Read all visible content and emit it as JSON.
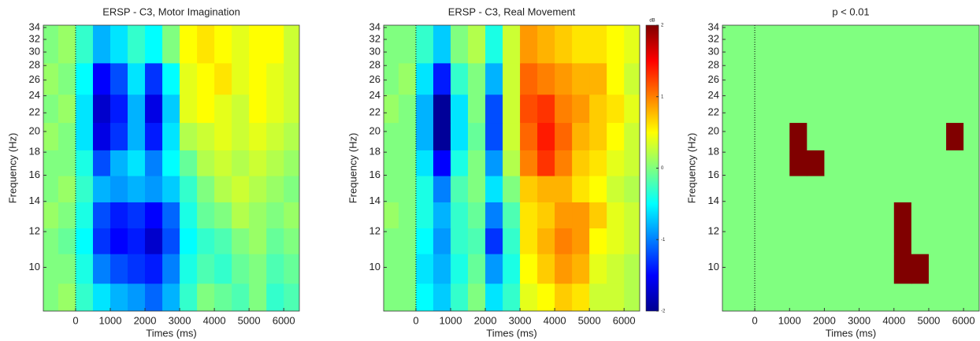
{
  "chart_data": [
    {
      "type": "heatmap",
      "title": "ERSP - C3, Motor Imagination",
      "xlabel": "Times (ms)",
      "ylabel": "Frequency (Hz)",
      "colormap": "jet",
      "clim": [
        -2,
        2
      ],
      "ylog": true,
      "events": [
        0
      ],
      "xlim": [
        -930,
        6450
      ],
      "xticks": [
        0,
        1000,
        2000,
        3000,
        4000,
        5000,
        6000
      ],
      "ylim": [
        8,
        34.4
      ],
      "yticks": [
        10,
        12,
        14,
        16,
        18,
        20,
        22,
        24,
        26,
        28,
        30,
        32,
        34
      ],
      "x": [
        -750,
        -250,
        250,
        750,
        1250,
        1750,
        2250,
        2750,
        3250,
        3750,
        4250,
        4750,
        5250,
        5750,
        6250
      ],
      "y": [
        8.5,
        10,
        11.5,
        13,
        15,
        17,
        19.5,
        22.5,
        26,
        31
      ],
      "values": [
        [
          0,
          0.1,
          -0.3,
          -0.6,
          -0.8,
          -0.9,
          -1.1,
          -0.8,
          -0.3,
          0,
          -0.1,
          -0.2,
          0,
          -0.3,
          -0.2
        ],
        [
          0,
          0,
          -0.4,
          -1.0,
          -1.2,
          -1.3,
          -1.4,
          -1.0,
          -0.4,
          -0.2,
          -0.3,
          -0.1,
          0,
          -0.2,
          -0.1
        ],
        [
          0,
          -0.1,
          -0.5,
          -1.3,
          -1.5,
          -1.4,
          -1.7,
          -1.2,
          -0.5,
          -0.3,
          -0.2,
          0,
          0.1,
          -0.1,
          0
        ],
        [
          0.1,
          0,
          -0.4,
          -1.2,
          -1.4,
          -1.3,
          -1.5,
          -1.1,
          -0.4,
          -0.1,
          0,
          0.2,
          0.1,
          0,
          0.1
        ],
        [
          0,
          0.1,
          -0.3,
          -0.8,
          -0.9,
          -0.8,
          -0.9,
          -0.7,
          -0.3,
          0,
          0.2,
          0.3,
          0.2,
          0.1,
          0
        ],
        [
          0,
          0,
          -0.4,
          -1.2,
          -0.8,
          -0.6,
          -1.0,
          -0.5,
          -0.1,
          0.2,
          0.3,
          0.2,
          0.3,
          0.2,
          0.1
        ],
        [
          0.1,
          0,
          -0.6,
          -1.6,
          -1.3,
          -0.8,
          -1.4,
          -0.6,
          0.2,
          0.3,
          0.4,
          0.3,
          0.4,
          0.3,
          0.2
        ],
        [
          0,
          0.1,
          -0.6,
          -1.7,
          -1.4,
          -0.8,
          -1.6,
          -0.7,
          0.4,
          0.5,
          0.4,
          0.3,
          0.5,
          0.4,
          0.3
        ],
        [
          0.1,
          0,
          -0.5,
          -1.5,
          -1.2,
          -0.6,
          -1.3,
          -0.5,
          0.4,
          0.5,
          0.6,
          0.4,
          0.5,
          0.4,
          0.3
        ],
        [
          0,
          0.1,
          -0.3,
          -0.8,
          -0.6,
          -0.3,
          -0.5,
          0,
          0.5,
          0.6,
          0.5,
          0.4,
          0.5,
          0.5,
          0.3
        ]
      ]
    },
    {
      "type": "heatmap",
      "title": "ERSP - C3, Real Movement",
      "xlabel": "Times (ms)",
      "ylabel": "Frequency (Hz)",
      "colormap": "jet",
      "clim": [
        -2,
        2
      ],
      "ylog": true,
      "events": [
        0
      ],
      "colorbar": {
        "label": "dB",
        "lim": [
          -2,
          2
        ],
        "ticks": [
          -2,
          -1,
          0,
          1,
          2
        ]
      },
      "xlim": [
        -930,
        6450
      ],
      "xticks": [
        0,
        1000,
        2000,
        3000,
        4000,
        5000,
        6000
      ],
      "ylim": [
        8,
        34.4
      ],
      "yticks": [
        10,
        12,
        14,
        16,
        18,
        20,
        22,
        24,
        26,
        28,
        30,
        32,
        34
      ],
      "x": [
        -750,
        -250,
        250,
        750,
        1250,
        1750,
        2250,
        2750,
        3250,
        3750,
        4250,
        4750,
        5250,
        5750,
        6250
      ],
      "y": [
        8.5,
        10,
        11.5,
        13,
        15,
        17,
        19.5,
        22.5,
        26,
        31
      ],
      "values": [
        [
          0,
          0,
          -0.5,
          -0.7,
          -0.3,
          0,
          -0.6,
          -0.3,
          0.4,
          0.5,
          0.7,
          0.6,
          0.3,
          0.3,
          0.2
        ],
        [
          0,
          0,
          -0.6,
          -0.8,
          -0.4,
          -0.1,
          -0.9,
          -0.4,
          0.5,
          0.7,
          0.9,
          0.8,
          0.4,
          0.3,
          0.2
        ],
        [
          0,
          0,
          -0.5,
          -0.9,
          -0.3,
          -0.2,
          -1.3,
          -0.3,
          0.6,
          0.8,
          1.0,
          0.9,
          0.5,
          0.4,
          0.3
        ],
        [
          0.1,
          0,
          -0.4,
          -0.8,
          -0.3,
          -0.1,
          -1.0,
          -0.2,
          0.6,
          0.7,
          0.9,
          0.9,
          0.7,
          0.4,
          0.3
        ],
        [
          0,
          0,
          -0.4,
          -1.0,
          -0.2,
          0,
          -0.6,
          0,
          0.7,
          0.8,
          0.8,
          0.6,
          0.5,
          0.3,
          0.2
        ],
        [
          0,
          0,
          -0.6,
          -1.5,
          -0.4,
          0,
          -0.9,
          0.2,
          1.0,
          1.3,
          1.0,
          0.7,
          0.6,
          0.4,
          0.3
        ],
        [
          0,
          0,
          -0.8,
          -1.9,
          -0.6,
          -0.1,
          -1.2,
          0.3,
          1.1,
          1.4,
          1.1,
          0.8,
          0.7,
          0.5,
          0.3
        ],
        [
          0.1,
          0,
          -0.8,
          -1.9,
          -0.6,
          0,
          -1.2,
          0.3,
          1.2,
          1.3,
          1.0,
          0.9,
          0.7,
          0.6,
          0.4
        ],
        [
          0,
          0.1,
          -0.6,
          -1.4,
          -0.3,
          0,
          -0.8,
          0.3,
          1.1,
          1.0,
          0.9,
          0.8,
          0.8,
          0.5,
          0.3
        ],
        [
          0,
          0,
          -0.3,
          -0.7,
          0,
          0.2,
          -0.4,
          0.3,
          0.9,
          0.8,
          0.7,
          0.6,
          0.6,
          0.5,
          0.4
        ]
      ]
    },
    {
      "type": "mask",
      "title": "p < 0.01",
      "xlabel": "Times (ms)",
      "ylabel": "Frequency (Hz)",
      "colors": [
        "#80ff80",
        "#800000"
      ],
      "ylog": true,
      "events": [
        0
      ],
      "xlim": [
        -930,
        6450
      ],
      "xticks": [
        0,
        1000,
        2000,
        3000,
        4000,
        5000,
        6000
      ],
      "ylim": [
        8,
        34.4
      ],
      "yticks": [
        10,
        12,
        14,
        16,
        18,
        20,
        22,
        24,
        26,
        28,
        30,
        32,
        34
      ],
      "x": [
        -750,
        -250,
        250,
        750,
        1250,
        1750,
        2250,
        2750,
        3250,
        3750,
        4250,
        4750,
        5250,
        5750,
        6250
      ],
      "y": [
        8.5,
        10,
        11.5,
        13,
        15,
        17,
        19.5,
        22.5,
        26,
        31
      ],
      "values": [
        [
          0,
          0,
          0,
          0,
          0,
          0,
          0,
          0,
          0,
          0,
          0,
          0,
          0,
          0,
          0
        ],
        [
          0,
          0,
          0,
          0,
          0,
          0,
          0,
          0,
          0,
          0,
          1,
          1,
          0,
          0,
          0
        ],
        [
          0,
          0,
          0,
          0,
          0,
          0,
          0,
          0,
          0,
          0,
          1,
          0,
          0,
          0,
          0
        ],
        [
          0,
          0,
          0,
          0,
          0,
          0,
          0,
          0,
          0,
          0,
          1,
          0,
          0,
          0,
          0
        ],
        [
          0,
          0,
          0,
          0,
          0,
          0,
          0,
          0,
          0,
          0,
          0,
          0,
          0,
          0,
          0
        ],
        [
          0,
          0,
          0,
          0,
          1,
          1,
          0,
          0,
          0,
          0,
          0,
          0,
          0,
          0,
          0
        ],
        [
          0,
          0,
          0,
          0,
          1,
          0,
          0,
          0,
          0,
          0,
          0,
          0,
          0,
          1,
          0
        ],
        [
          0,
          0,
          0,
          0,
          0,
          0,
          0,
          0,
          0,
          0,
          0,
          0,
          0,
          0,
          0
        ],
        [
          0,
          0,
          0,
          0,
          0,
          0,
          0,
          0,
          0,
          0,
          0,
          0,
          0,
          0,
          0
        ],
        [
          0,
          0,
          0,
          0,
          0,
          0,
          0,
          0,
          0,
          0,
          0,
          0,
          0,
          0,
          0
        ]
      ]
    }
  ]
}
